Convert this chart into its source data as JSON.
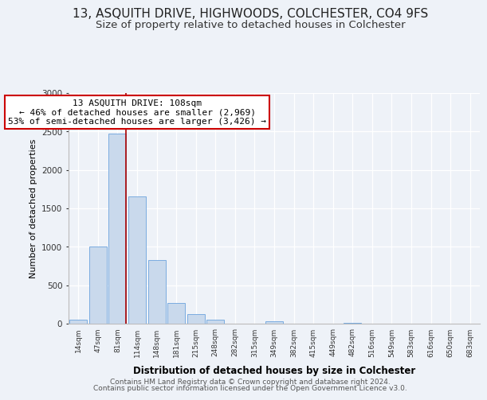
{
  "title": "13, ASQUITH DRIVE, HIGHWOODS, COLCHESTER, CO4 9FS",
  "subtitle": "Size of property relative to detached houses in Colchester",
  "xlabel": "Distribution of detached houses by size in Colchester",
  "ylabel": "Number of detached properties",
  "bin_labels": [
    "14sqm",
    "47sqm",
    "81sqm",
    "114sqm",
    "148sqm",
    "181sqm",
    "215sqm",
    "248sqm",
    "282sqm",
    "315sqm",
    "349sqm",
    "382sqm",
    "415sqm",
    "449sqm",
    "482sqm",
    "516sqm",
    "549sqm",
    "583sqm",
    "616sqm",
    "650sqm",
    "683sqm"
  ],
  "bar_values": [
    50,
    1000,
    2470,
    1660,
    830,
    265,
    120,
    50,
    0,
    0,
    35,
    0,
    0,
    0,
    15,
    0,
    0,
    0,
    0,
    0,
    0
  ],
  "bar_color": "#c9d9ec",
  "bar_edge_color": "#7aace0",
  "vline_color": "#aa0000",
  "annotation_title": "13 ASQUITH DRIVE: 108sqm",
  "annotation_line1": "← 46% of detached houses are smaller (2,969)",
  "annotation_line2": "53% of semi-detached houses are larger (3,426) →",
  "annotation_box_edge": "#cc0000",
  "ylim": [
    0,
    3000
  ],
  "footer1": "Contains HM Land Registry data © Crown copyright and database right 2024.",
  "footer2": "Contains public sector information licensed under the Open Government Licence v3.0.",
  "bg_color": "#eef2f8",
  "title_fontsize": 11,
  "subtitle_fontsize": 9.5
}
